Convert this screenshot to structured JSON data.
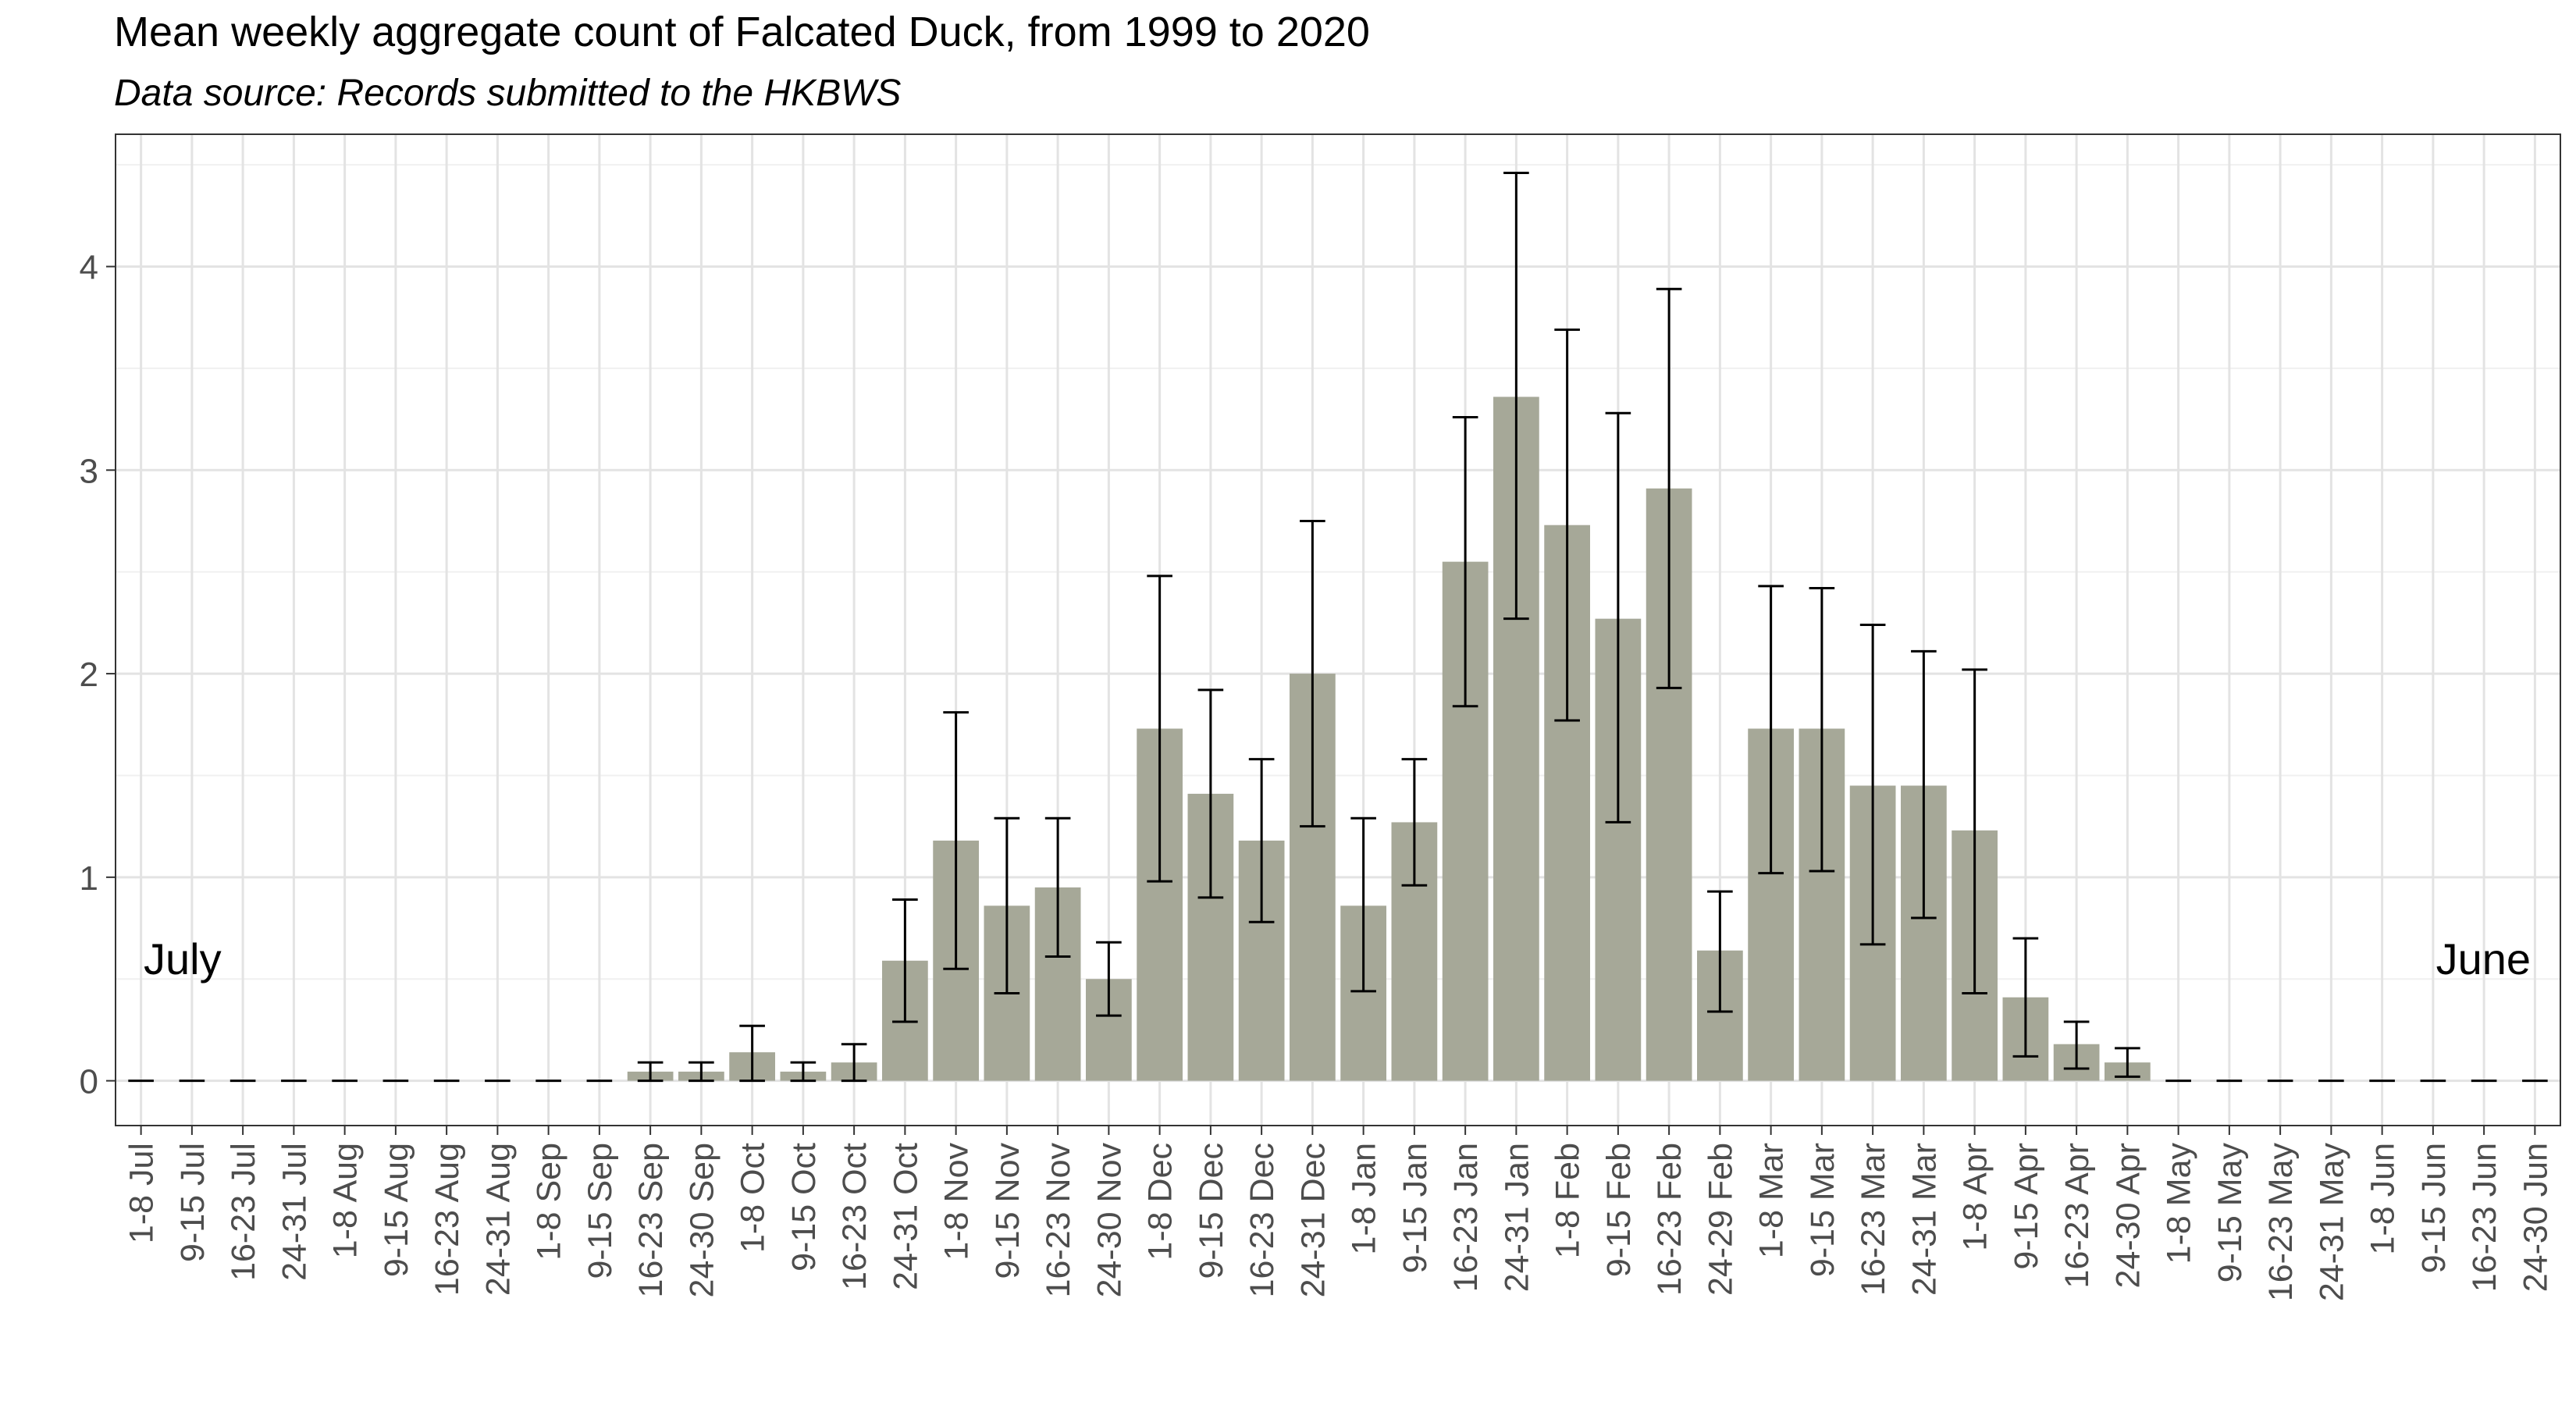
{
  "chart_data": {
    "type": "bar",
    "title": "Mean weekly aggregate count of Falcated Duck, from 1999 to 2020",
    "subtitle": "Data source: Records submitted to the HKBWS",
    "xlabel": "",
    "ylabel": "",
    "ylim": [
      -0.22,
      4.65
    ],
    "yticks": [
      0,
      1,
      2,
      3,
      4
    ],
    "grid": true,
    "annotations": {
      "start": "July",
      "end": "June"
    },
    "bar_color": "#a6a898",
    "categories": [
      "1-8 Jul",
      "9-15 Jul",
      "16-23 Jul",
      "24-31 Jul",
      "1-8 Aug",
      "9-15 Aug",
      "16-23 Aug",
      "24-31 Aug",
      "1-8 Sep",
      "9-15 Sep",
      "16-23 Sep",
      "24-30 Sep",
      "1-8 Oct",
      "9-15 Oct",
      "16-23 Oct",
      "24-31 Oct",
      "1-8 Nov",
      "9-15 Nov",
      "16-23 Nov",
      "24-30 Nov",
      "1-8 Dec",
      "9-15 Dec",
      "16-23 Dec",
      "24-31 Dec",
      "1-8 Jan",
      "9-15 Jan",
      "16-23 Jan",
      "24-31 Jan",
      "1-8 Feb",
      "9-15 Feb",
      "16-23 Feb",
      "24-29 Feb",
      "1-8 Mar",
      "9-15 Mar",
      "16-23 Mar",
      "24-31 Mar",
      "1-8 Apr",
      "9-15 Apr",
      "16-23 Apr",
      "24-30 Apr",
      "1-8 May",
      "9-15 May",
      "16-23 May",
      "24-31 May",
      "1-8 Jun",
      "9-15 Jun",
      "16-23 Jun",
      "24-30 Jun"
    ],
    "values": [
      0,
      0,
      0,
      0,
      0,
      0,
      0,
      0,
      0,
      0,
      0.045,
      0.045,
      0.14,
      0.045,
      0.09,
      0.59,
      1.18,
      0.86,
      0.95,
      0.5,
      1.73,
      1.41,
      1.18,
      2.0,
      0.86,
      1.27,
      2.55,
      3.36,
      2.73,
      2.27,
      2.91,
      0.64,
      1.73,
      1.73,
      1.45,
      1.45,
      1.23,
      0.41,
      0.18,
      0.09,
      0,
      0,
      0,
      0,
      0,
      0,
      0,
      0
    ],
    "error_low": [
      0,
      0,
      0,
      0,
      0,
      0,
      0,
      0,
      0,
      0,
      0.0,
      0.0,
      0.0,
      0.0,
      0.0,
      0.29,
      0.55,
      0.43,
      0.61,
      0.32,
      0.98,
      0.9,
      0.78,
      1.25,
      0.44,
      0.96,
      1.84,
      2.27,
      1.77,
      1.27,
      1.93,
      0.34,
      1.02,
      1.03,
      0.67,
      0.8,
      0.43,
      0.12,
      0.06,
      0.02,
      0,
      0,
      0,
      0,
      0,
      0,
      0,
      0
    ],
    "error_high": [
      0,
      0,
      0,
      0,
      0,
      0,
      0,
      0,
      0,
      0,
      0.09,
      0.09,
      0.27,
      0.09,
      0.18,
      0.89,
      1.81,
      1.29,
      1.29,
      0.68,
      2.48,
      1.92,
      1.58,
      2.75,
      1.29,
      1.58,
      3.26,
      4.46,
      3.69,
      3.28,
      3.89,
      0.93,
      2.43,
      2.42,
      2.24,
      2.11,
      2.02,
      0.7,
      0.29,
      0.16,
      0,
      0,
      0,
      0,
      0,
      0,
      0,
      0
    ]
  }
}
